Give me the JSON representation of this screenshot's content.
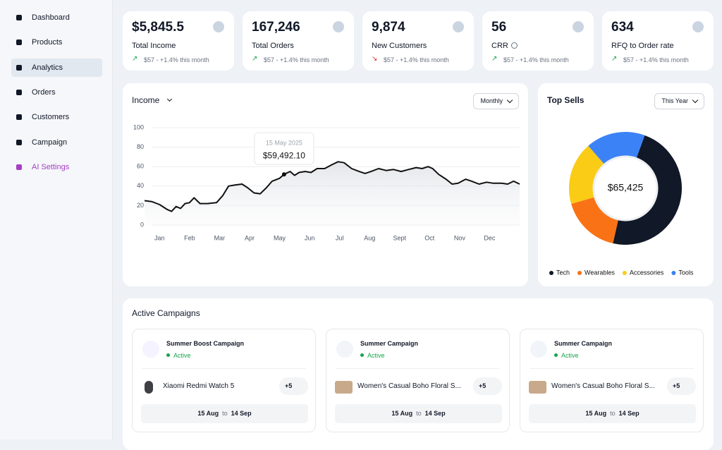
{
  "sidebar": {
    "active": 2,
    "items": [
      {
        "label": "Dashboard"
      },
      {
        "label": "Products"
      },
      {
        "label": "Analytics"
      },
      {
        "label": "Orders"
      },
      {
        "label": "Customers"
      },
      {
        "label": "Campaign"
      },
      {
        "label": "AI Settings",
        "color": "#a63ec3"
      }
    ]
  },
  "stats": [
    {
      "value": "$5,845.5",
      "label": "Total Income",
      "change": "$57 - +1.4% this month",
      "trend": "up"
    },
    {
      "value": "167,246",
      "label": "Total Orders",
      "change": "$57 - +1.4% this month",
      "trend": "up"
    },
    {
      "value": "9,874",
      "label": "New Customers",
      "change": "$57 - +1.4% this month",
      "trend": "down"
    },
    {
      "value": "56",
      "label": "CRR",
      "change": "$57 - +1.4% this month",
      "trend": "up",
      "info": true
    },
    {
      "value": "634",
      "label": "RFQ to Order rate",
      "change": "$57 - +1.4% this month",
      "trend": "up"
    }
  ],
  "chart_data": [
    {
      "type": "line",
      "title": "Income",
      "period": "Monthly",
      "color": "#111111",
      "grid": true,
      "x": [
        -0.5,
        -0.25,
        0,
        0.25,
        0.4,
        0.55,
        0.7,
        0.85,
        1,
        1.15,
        1.35,
        1.6,
        1.9,
        2.1,
        2.3,
        2.5,
        2.75,
        2.95,
        3.15,
        3.35,
        3.55,
        3.75,
        4,
        4.15,
        4.35,
        4.5,
        4.65,
        4.85,
        5.05,
        5.25,
        5.5,
        5.75,
        5.95,
        6.15,
        6.4,
        6.65,
        6.85,
        7.05,
        7.3,
        7.55,
        7.8,
        8.05,
        8.3,
        8.55,
        8.75,
        8.95,
        9.1,
        9.3,
        9.55,
        9.75,
        9.95,
        10.2,
        10.4,
        10.65,
        10.9,
        11.1,
        11.4,
        11.6,
        11.8,
        12
      ],
      "values": [
        25,
        24,
        21,
        16,
        14,
        19,
        17,
        22,
        23,
        28,
        22,
        22,
        23,
        30,
        40,
        41,
        42,
        38,
        33,
        32,
        38,
        45,
        48,
        52,
        55,
        51,
        54,
        55,
        54,
        58,
        58,
        62,
        65,
        64,
        58,
        55,
        53,
        55,
        58,
        56,
        57,
        55,
        57,
        59,
        58,
        60,
        58,
        52,
        47,
        42,
        43,
        47,
        45,
        42,
        44,
        43,
        43,
        42,
        45,
        42
      ],
      "xlim": [
        -0.5,
        12
      ],
      "ylim": [
        0,
        100
      ],
      "yticks": [
        0,
        20,
        40,
        60,
        80,
        100
      ],
      "xticks": [
        {
          "value": 0,
          "label": "Jan"
        },
        {
          "value": 1,
          "label": "Feb"
        },
        {
          "value": 2,
          "label": "Mar"
        },
        {
          "value": 3,
          "label": "Apr"
        },
        {
          "value": 4,
          "label": "May"
        },
        {
          "value": 5,
          "label": "Jun"
        },
        {
          "value": 6,
          "label": "Jul"
        },
        {
          "value": 7,
          "label": "Aug"
        },
        {
          "value": 8,
          "label": "Sept"
        },
        {
          "value": 9,
          "label": "Oct"
        },
        {
          "value": 10,
          "label": "Nov"
        },
        {
          "value": 11,
          "label": "Dec"
        }
      ],
      "tooltip": {
        "x": 4.15,
        "title": "15 May 2025",
        "value": "$59,492.10"
      }
    },
    {
      "type": "pie",
      "title": "Top Sells",
      "period": "This Year",
      "center_label": "$65,425",
      "legend": "bottom",
      "start_angle": 20,
      "categories": [
        "Tech",
        "Wearables",
        "Accessories",
        "Tools"
      ],
      "values": [
        48,
        17,
        18,
        17
      ],
      "colors": [
        "#111827",
        "#f97316",
        "#facc15",
        "#3b82f6"
      ]
    }
  ],
  "campaigns": {
    "title": "Active Campaigns",
    "items": [
      {
        "name": "Summer Boost Campaign",
        "status": "Active",
        "product": "Xiaomi Redmi Watch 5",
        "extra": "+5",
        "start": "15 Aug",
        "to": "to",
        "end": "14 Sep"
      },
      {
        "name": "Summer Campaign",
        "status": "Active",
        "product": "Women's Casual Boho Floral S...",
        "extra": "+5",
        "start": "15 Aug",
        "to": "to",
        "end": "14 Sep"
      },
      {
        "name": "Summer Campaign",
        "status": "Active",
        "product": "Women's Casual Boho Floral S...",
        "extra": "+5",
        "start": "15 Aug",
        "to": "to",
        "end": "14 Sep"
      }
    ]
  }
}
